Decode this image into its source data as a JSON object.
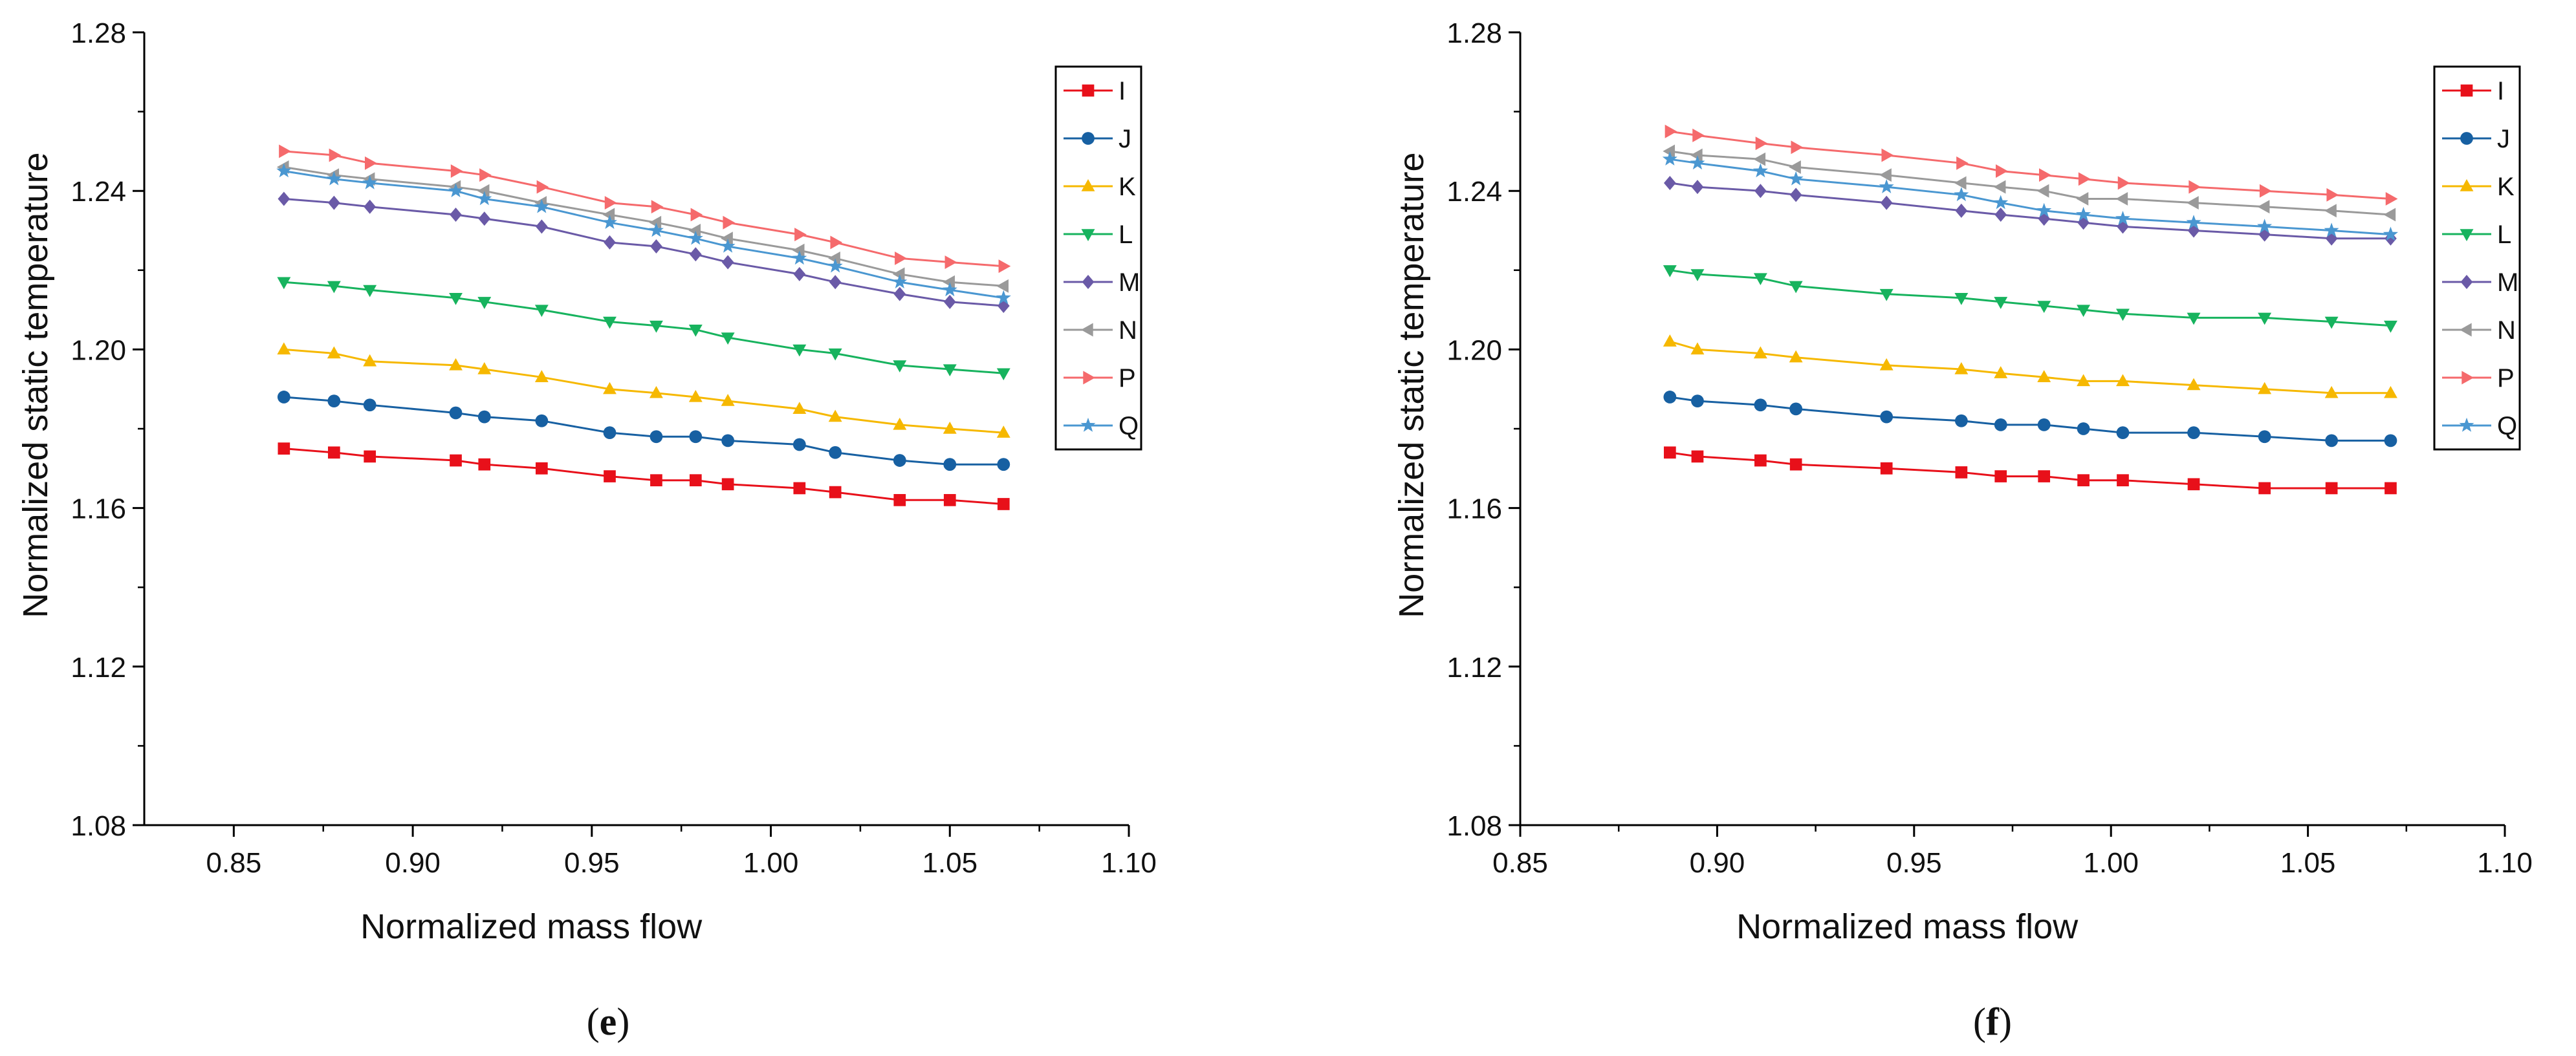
{
  "colors": {
    "I": "#e8101a",
    "J": "#1760a2",
    "K": "#f6b800",
    "L": "#17b35e",
    "M": "#6a5aa7",
    "N": "#9a9a9a",
    "P": "#f56a6c",
    "Q": "#4a97d1"
  },
  "markers": {
    "I": "square",
    "J": "circle",
    "K": "triangle-up",
    "L": "triangle-down",
    "M": "diamond",
    "N": "triangle-left",
    "P": "triangle-right",
    "Q": "star"
  },
  "chart_data": [
    {
      "type": "line",
      "panel_label": "e",
      "xlabel": "Normalized mass flow",
      "ylabel": "Normalized static temperature",
      "xlim": [
        0.825,
        1.1
      ],
      "ylim": [
        1.08,
        1.28
      ],
      "xticks": [
        "0.85",
        "0.90",
        "0.95",
        "1.00",
        "1.05",
        "1.10"
      ],
      "yticks": [
        "1.08",
        "1.12",
        "1.16",
        "1.20",
        "1.24",
        "1.28"
      ],
      "x": [
        0.864,
        0.878,
        0.888,
        0.912,
        0.92,
        0.936,
        0.955,
        0.968,
        0.979,
        0.988,
        1.008,
        1.018,
        1.036,
        1.05,
        1.065
      ],
      "series": [
        {
          "name": "I",
          "values": [
            1.175,
            1.174,
            1.173,
            1.172,
            1.171,
            1.17,
            1.168,
            1.167,
            1.167,
            1.166,
            1.165,
            1.164,
            1.162,
            1.162,
            1.161
          ]
        },
        {
          "name": "J",
          "values": [
            1.188,
            1.187,
            1.186,
            1.184,
            1.183,
            1.182,
            1.179,
            1.178,
            1.178,
            1.177,
            1.176,
            1.174,
            1.172,
            1.171,
            1.171
          ]
        },
        {
          "name": "K",
          "values": [
            1.2,
            1.199,
            1.197,
            1.196,
            1.195,
            1.193,
            1.19,
            1.189,
            1.188,
            1.187,
            1.185,
            1.183,
            1.181,
            1.18,
            1.179
          ]
        },
        {
          "name": "L",
          "values": [
            1.217,
            1.216,
            1.215,
            1.213,
            1.212,
            1.21,
            1.207,
            1.206,
            1.205,
            1.203,
            1.2,
            1.199,
            1.196,
            1.195,
            1.194
          ]
        },
        {
          "name": "M",
          "values": [
            1.238,
            1.237,
            1.236,
            1.234,
            1.233,
            1.231,
            1.227,
            1.226,
            1.224,
            1.222,
            1.219,
            1.217,
            1.214,
            1.212,
            1.211
          ]
        },
        {
          "name": "N",
          "values": [
            1.246,
            1.244,
            1.243,
            1.241,
            1.24,
            1.237,
            1.234,
            1.232,
            1.23,
            1.228,
            1.225,
            1.223,
            1.219,
            1.217,
            1.216
          ]
        },
        {
          "name": "P",
          "values": [
            1.25,
            1.249,
            1.247,
            1.245,
            1.244,
            1.241,
            1.237,
            1.236,
            1.234,
            1.232,
            1.229,
            1.227,
            1.223,
            1.222,
            1.221
          ]
        },
        {
          "name": "Q",
          "values": [
            1.245,
            1.243,
            1.242,
            1.24,
            1.238,
            1.236,
            1.232,
            1.23,
            1.228,
            1.226,
            1.223,
            1.221,
            1.217,
            1.215,
            1.213
          ]
        }
      ],
      "legend": [
        "I",
        "J",
        "K",
        "L",
        "M",
        "N",
        "P",
        "Q"
      ],
      "legend_position": "top-right"
    },
    {
      "type": "line",
      "panel_label": "f",
      "xlabel": "Normalized mass flow",
      "ylabel": "Normalized static temperature",
      "xlim": [
        0.85,
        1.1
      ],
      "ylim": [
        1.08,
        1.28
      ],
      "xticks": [
        "0.85",
        "0.90",
        "0.95",
        "1.00",
        "1.05",
        "1.10"
      ],
      "yticks": [
        "1.08",
        "1.12",
        "1.16",
        "1.20",
        "1.24",
        "1.28"
      ],
      "x": [
        0.888,
        0.895,
        0.911,
        0.92,
        0.943,
        0.962,
        0.972,
        0.983,
        0.993,
        1.003,
        1.021,
        1.039,
        1.056,
        1.071
      ],
      "series": [
        {
          "name": "I",
          "values": [
            1.174,
            1.173,
            1.172,
            1.171,
            1.17,
            1.169,
            1.168,
            1.168,
            1.167,
            1.167,
            1.166,
            1.165,
            1.165,
            1.165
          ]
        },
        {
          "name": "J",
          "values": [
            1.188,
            1.187,
            1.186,
            1.185,
            1.183,
            1.182,
            1.181,
            1.181,
            1.18,
            1.179,
            1.179,
            1.178,
            1.177,
            1.177
          ]
        },
        {
          "name": "K",
          "values": [
            1.202,
            1.2,
            1.199,
            1.198,
            1.196,
            1.195,
            1.194,
            1.193,
            1.192,
            1.192,
            1.191,
            1.19,
            1.189,
            1.189
          ]
        },
        {
          "name": "L",
          "values": [
            1.22,
            1.219,
            1.218,
            1.216,
            1.214,
            1.213,
            1.212,
            1.211,
            1.21,
            1.209,
            1.208,
            1.208,
            1.207,
            1.206
          ]
        },
        {
          "name": "M",
          "values": [
            1.242,
            1.241,
            1.24,
            1.239,
            1.237,
            1.235,
            1.234,
            1.233,
            1.232,
            1.231,
            1.23,
            1.229,
            1.228,
            1.228
          ]
        },
        {
          "name": "N",
          "values": [
            1.25,
            1.249,
            1.248,
            1.246,
            1.244,
            1.242,
            1.241,
            1.24,
            1.238,
            1.238,
            1.237,
            1.236,
            1.235,
            1.234
          ]
        },
        {
          "name": "P",
          "values": [
            1.255,
            1.254,
            1.252,
            1.251,
            1.249,
            1.247,
            1.245,
            1.244,
            1.243,
            1.242,
            1.241,
            1.24,
            1.239,
            1.238
          ]
        },
        {
          "name": "Q",
          "values": [
            1.248,
            1.247,
            1.245,
            1.243,
            1.241,
            1.239,
            1.237,
            1.235,
            1.234,
            1.233,
            1.232,
            1.231,
            1.23,
            1.229
          ]
        }
      ],
      "legend": [
        "I",
        "J",
        "K",
        "L",
        "M",
        "N",
        "P",
        "Q"
      ],
      "legend_position": "top-right"
    }
  ]
}
